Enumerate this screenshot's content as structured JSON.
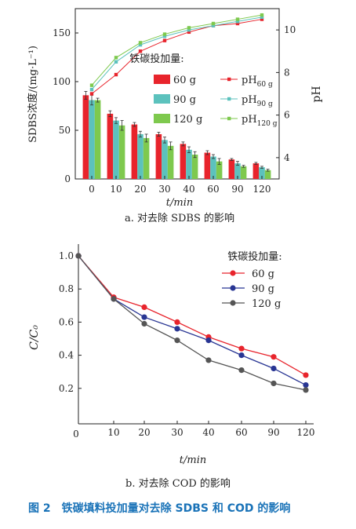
{
  "chart_data": [
    {
      "type": "bar+line",
      "caption": "a. 对去除 SDBS 的影响",
      "categories": [
        "0",
        "10",
        "20",
        "30",
        "40",
        "60",
        "90",
        "120"
      ],
      "xlabel": "t/min",
      "ylabel": "SDBS浓度/(mg·L⁻¹)",
      "ylabel_right": "pH",
      "ylim": [
        0,
        175
      ],
      "ylim_right": [
        3,
        11
      ],
      "yticks": [
        0,
        50,
        100,
        150
      ],
      "yticks_right": [
        4,
        6,
        8,
        10
      ],
      "legend_title": "铁碳投加量:",
      "bar_series": [
        {
          "name": "60 g",
          "color": "#e8242c",
          "values": [
            86,
            67,
            56,
            46,
            36,
            27,
            20,
            16
          ],
          "errors": [
            4,
            3,
            2,
            2,
            2,
            2,
            1,
            1
          ]
        },
        {
          "name": "90 g",
          "color": "#5cc2bd",
          "values": [
            81,
            60,
            46,
            40,
            30,
            23,
            16,
            12
          ],
          "errors": [
            5,
            3,
            3,
            3,
            3,
            2,
            2,
            1
          ]
        },
        {
          "name": "120 g",
          "color": "#7ec94e",
          "values": [
            81,
            55,
            42,
            34,
            25,
            18,
            13,
            9
          ],
          "errors": [
            2,
            5,
            4,
            4,
            3,
            3,
            1,
            1
          ]
        }
      ],
      "line_series": [
        {
          "name": "pH",
          "sub": "60 g",
          "color": "#e8242c",
          "values": [
            7.0,
            7.9,
            9.0,
            9.5,
            9.9,
            10.2,
            10.3,
            10.5
          ]
        },
        {
          "name": "pH",
          "sub": "90 g",
          "color": "#5cc2bd",
          "values": [
            7.2,
            8.5,
            9.3,
            9.7,
            10.0,
            10.2,
            10.4,
            10.6
          ]
        },
        {
          "name": "pH",
          "sub": "120 g",
          "color": "#7ec94e",
          "values": [
            7.4,
            8.7,
            9.4,
            9.8,
            10.1,
            10.3,
            10.5,
            10.7
          ]
        }
      ]
    },
    {
      "type": "line",
      "caption": "b. 对去除 COD 的影响",
      "x": [
        0,
        10,
        20,
        30,
        40,
        60,
        90,
        120
      ],
      "xticks": [
        "0",
        "10",
        "20",
        "30",
        "40",
        "60",
        "90",
        "120"
      ],
      "xlabel": "t/min",
      "ylabel": "C/C₀",
      "ylim": [
        0,
        1.08
      ],
      "yticks": [
        "0.2",
        "0.4",
        "0.6",
        "0.8",
        "1.0"
      ],
      "legend_title": "铁碳投加量:",
      "series": [
        {
          "name": "60 g",
          "color": "#e8242c",
          "values": [
            1.0,
            0.75,
            0.69,
            0.6,
            0.51,
            0.44,
            0.39,
            0.28
          ]
        },
        {
          "name": "90 g",
          "color": "#283593",
          "values": [
            1.0,
            0.74,
            0.63,
            0.56,
            0.49,
            0.4,
            0.32,
            0.22
          ]
        },
        {
          "name": "120 g",
          "color": "#555555",
          "values": [
            1.0,
            0.74,
            0.59,
            0.49,
            0.37,
            0.31,
            0.23,
            0.19
          ]
        }
      ]
    }
  ],
  "figure_caption": "图 2　铁碳填料投加量对去除 SDBS 和 COD 的影响"
}
